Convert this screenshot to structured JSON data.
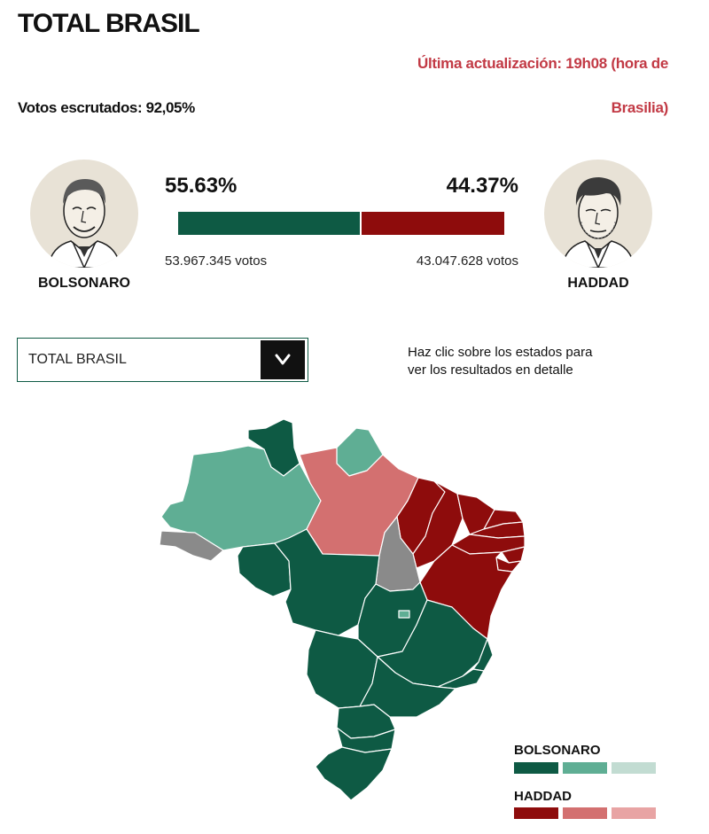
{
  "title": "TOTAL BRASIL",
  "update": {
    "line1": "Última actualización: 19h08 (hora de",
    "line2": "Brasilia)"
  },
  "counted": "Votos escrutados: 92,05%",
  "candidates": {
    "bolsonaro": {
      "name": "BOLSONARO",
      "percent": "55.63%",
      "share": 55.63,
      "votes": "53.967.345 votos",
      "color": "#0e5a44"
    },
    "haddad": {
      "name": "HADDAD",
      "percent": "44.37%",
      "share": 44.37,
      "votes": "43.047.628 votos",
      "color": "#8e0c0c"
    }
  },
  "dropdown": {
    "selected": "TOTAL BRASIL",
    "icon": "chevron-down-icon"
  },
  "hint": {
    "line1": "Haz clic sobre los estados para",
    "line2": "ver los resultados en detalle"
  },
  "legend": {
    "bolsonaro": {
      "title": "BOLSONARO",
      "shades": [
        "#0e5a44",
        "#5fae94",
        "#c2dcd2"
      ]
    },
    "haddad": {
      "title": "HADDAD",
      "shades": [
        "#8e0c0c",
        "#d37070",
        "#e8a4a4"
      ]
    }
  },
  "colors": {
    "accent_red": "#c23a45",
    "no_data": "#8a8a8a"
  }
}
